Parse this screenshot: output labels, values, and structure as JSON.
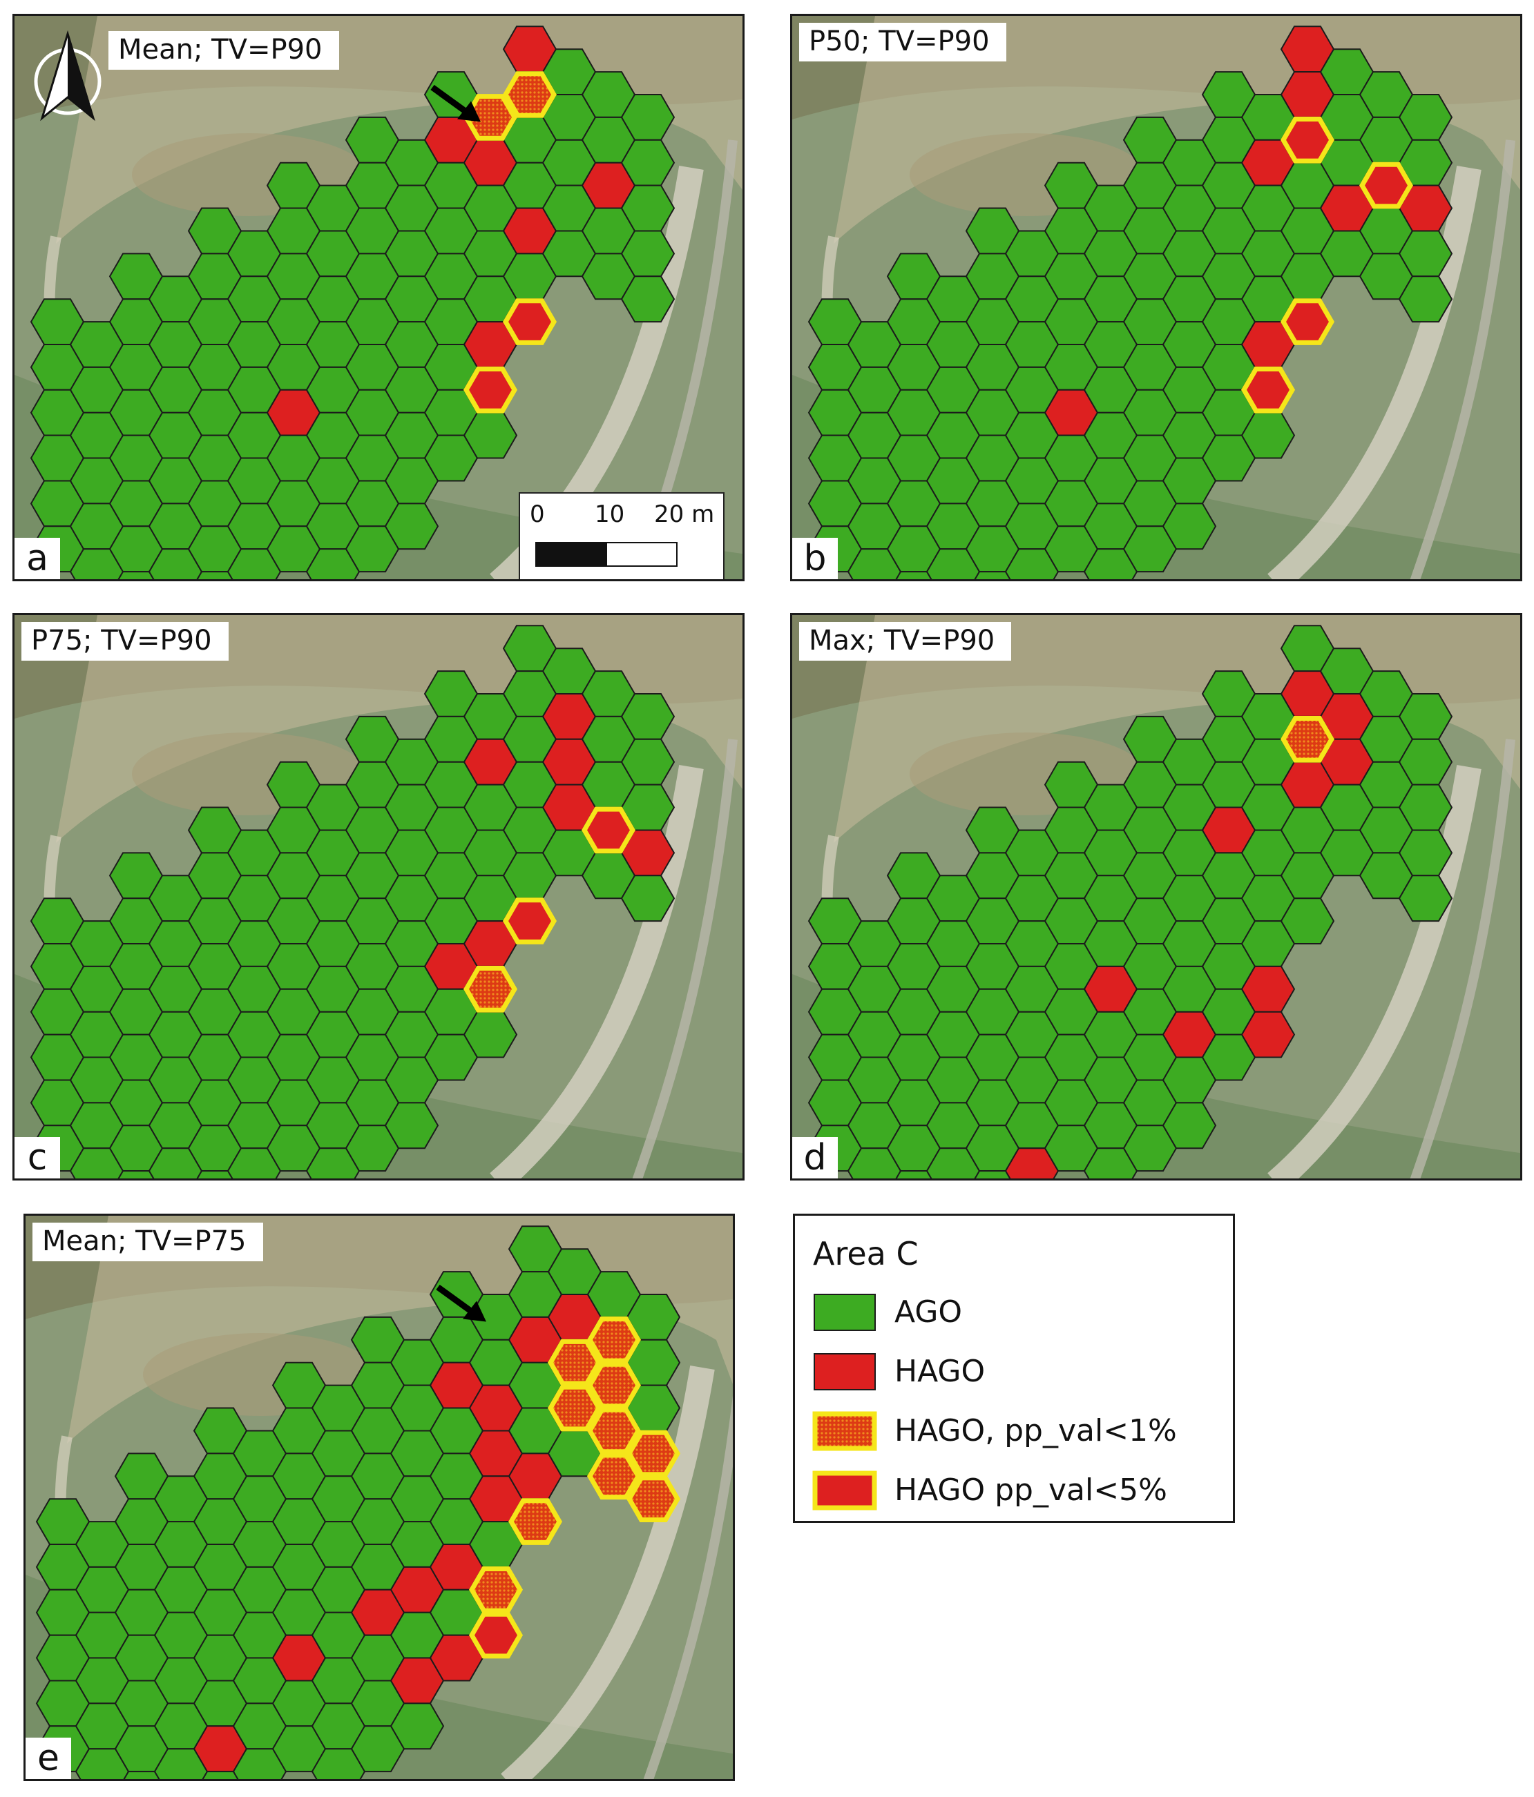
{
  "panels": {
    "a": {
      "title": "Mean; TV=P90",
      "letter": "a"
    },
    "b": {
      "title": "P50; TV=P90",
      "letter": "b"
    },
    "c": {
      "title": "P75; TV=P90",
      "letter": "c"
    },
    "d": {
      "title": "Max; TV=P90",
      "letter": "d"
    },
    "e": {
      "title": "Mean; TV=P75",
      "letter": "e"
    }
  },
  "scalebar": {
    "ticks": [
      "0",
      "10",
      "20 m"
    ]
  },
  "legend": {
    "title": "Area C",
    "items": [
      {
        "label": "AGO"
      },
      {
        "label": "HAGO"
      },
      {
        "label": "HAGO, pp_val<1%"
      },
      {
        "label": "HAGO pp_val<5%"
      }
    ]
  },
  "colors": {
    "ago": "#3dab22",
    "hago": "#dd2020",
    "significance_outline": "#f5e61a",
    "hex_stroke": "#1b1b1b"
  }
}
